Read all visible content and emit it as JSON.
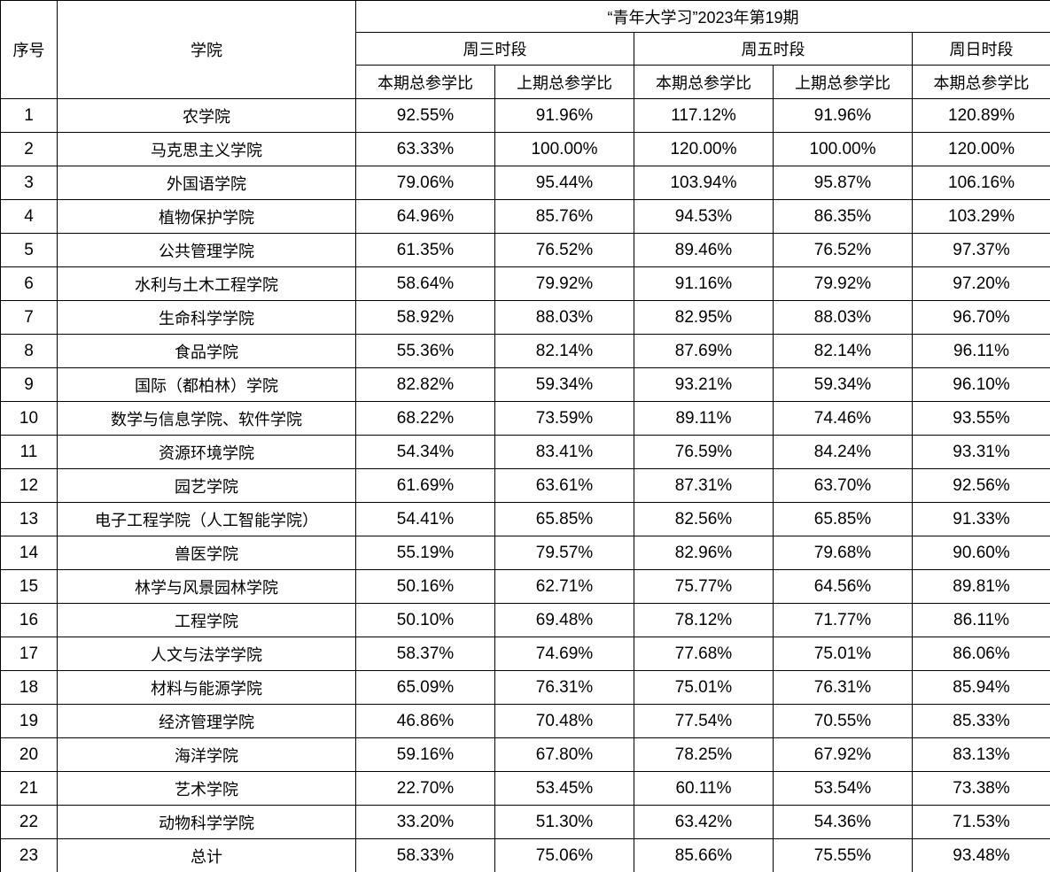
{
  "header": {
    "seq": "序号",
    "college": "学院",
    "title": "“青年大学习”2023年第19期",
    "groups": [
      "周三时段",
      "周五时段",
      "周日时段"
    ],
    "subcols": [
      "本期总参学比",
      "上期总参学比",
      "本期总参学比",
      "上期总参学比",
      "本期总参学比"
    ]
  },
  "rows": [
    {
      "seq": "1",
      "college": "农学院",
      "vals": [
        "92.55%",
        "91.96%",
        "117.12%",
        "91.96%",
        "120.89%"
      ]
    },
    {
      "seq": "2",
      "college": "马克思主义学院",
      "vals": [
        "63.33%",
        "100.00%",
        "120.00%",
        "100.00%",
        "120.00%"
      ]
    },
    {
      "seq": "3",
      "college": "外国语学院",
      "vals": [
        "79.06%",
        "95.44%",
        "103.94%",
        "95.87%",
        "106.16%"
      ]
    },
    {
      "seq": "4",
      "college": "植物保护学院",
      "vals": [
        "64.96%",
        "85.76%",
        "94.53%",
        "86.35%",
        "103.29%"
      ]
    },
    {
      "seq": "5",
      "college": "公共管理学院",
      "vals": [
        "61.35%",
        "76.52%",
        "89.46%",
        "76.52%",
        "97.37%"
      ]
    },
    {
      "seq": "6",
      "college": "水利与土木工程学院",
      "vals": [
        "58.64%",
        "79.92%",
        "91.16%",
        "79.92%",
        "97.20%"
      ]
    },
    {
      "seq": "7",
      "college": "生命科学学院",
      "vals": [
        "58.92%",
        "88.03%",
        "82.95%",
        "88.03%",
        "96.70%"
      ]
    },
    {
      "seq": "8",
      "college": "食品学院",
      "vals": [
        "55.36%",
        "82.14%",
        "87.69%",
        "82.14%",
        "96.11%"
      ]
    },
    {
      "seq": "9",
      "college": "国际（都柏林）学院",
      "vals": [
        "82.82%",
        "59.34%",
        "93.21%",
        "59.34%",
        "96.10%"
      ]
    },
    {
      "seq": "10",
      "college": "数学与信息学院、软件学院",
      "vals": [
        "68.22%",
        "73.59%",
        "89.11%",
        "74.46%",
        "93.55%"
      ]
    },
    {
      "seq": "11",
      "college": "资源环境学院",
      "vals": [
        "54.34%",
        "83.41%",
        "76.59%",
        "84.24%",
        "93.31%"
      ]
    },
    {
      "seq": "12",
      "college": "园艺学院",
      "vals": [
        "61.69%",
        "63.61%",
        "87.31%",
        "63.70%",
        "92.56%"
      ]
    },
    {
      "seq": "13",
      "college": "电子工程学院（人工智能学院）",
      "vals": [
        "54.41%",
        "65.85%",
        "82.56%",
        "65.85%",
        "91.33%"
      ]
    },
    {
      "seq": "14",
      "college": "兽医学院",
      "vals": [
        "55.19%",
        "79.57%",
        "82.96%",
        "79.68%",
        "90.60%"
      ]
    },
    {
      "seq": "15",
      "college": "林学与风景园林学院",
      "vals": [
        "50.16%",
        "62.71%",
        "75.77%",
        "64.56%",
        "89.81%"
      ]
    },
    {
      "seq": "16",
      "college": "工程学院",
      "vals": [
        "50.10%",
        "69.48%",
        "78.12%",
        "71.77%",
        "86.11%"
      ]
    },
    {
      "seq": "17",
      "college": "人文与法学学院",
      "vals": [
        "58.37%",
        "74.69%",
        "77.68%",
        "75.01%",
        "86.06%"
      ]
    },
    {
      "seq": "18",
      "college": "材料与能源学院",
      "vals": [
        "65.09%",
        "76.31%",
        "75.01%",
        "76.31%",
        "85.94%"
      ]
    },
    {
      "seq": "19",
      "college": "经济管理学院",
      "vals": [
        "46.86%",
        "70.48%",
        "77.54%",
        "70.55%",
        "85.33%"
      ]
    },
    {
      "seq": "20",
      "college": "海洋学院",
      "vals": [
        "59.16%",
        "67.80%",
        "78.25%",
        "67.92%",
        "83.13%"
      ]
    },
    {
      "seq": "21",
      "college": "艺术学院",
      "vals": [
        "22.70%",
        "53.45%",
        "60.11%",
        "53.54%",
        "73.38%"
      ]
    },
    {
      "seq": "22",
      "college": "动物科学学院",
      "vals": [
        "33.20%",
        "51.30%",
        "63.42%",
        "54.36%",
        "71.53%"
      ]
    },
    {
      "seq": "23",
      "college": "总计",
      "vals": [
        "58.33%",
        "75.06%",
        "85.66%",
        "75.55%",
        "93.48%"
      ]
    }
  ]
}
